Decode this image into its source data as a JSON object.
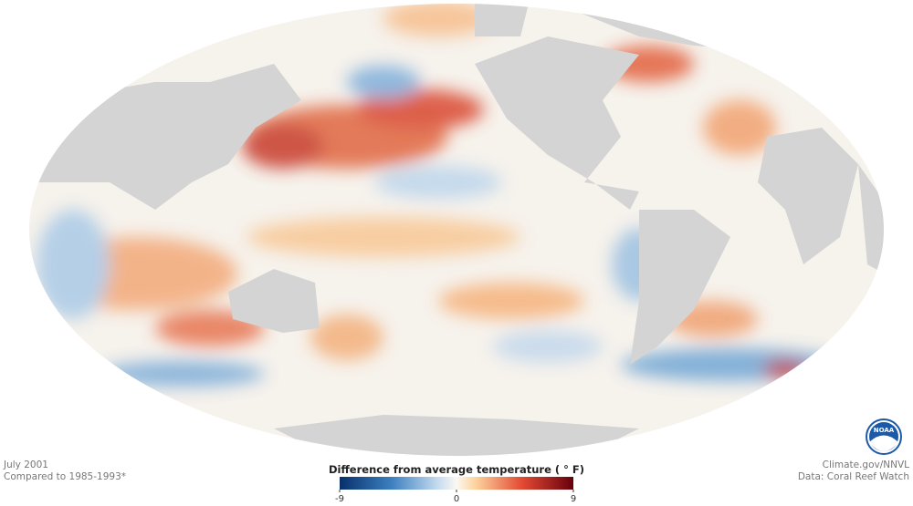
{
  "footer": {
    "date": "July 2001",
    "baseline": "Compared to 1985-1993*",
    "credit": "Climate.gov/NNVL",
    "source": "Data: Coral Reef Watch"
  },
  "logo": "NOAA",
  "legend": {
    "title": "Difference from average temperature ( ° F)",
    "range": [
      -9,
      9
    ],
    "ticks": [
      -9,
      0,
      9
    ]
  }
}
